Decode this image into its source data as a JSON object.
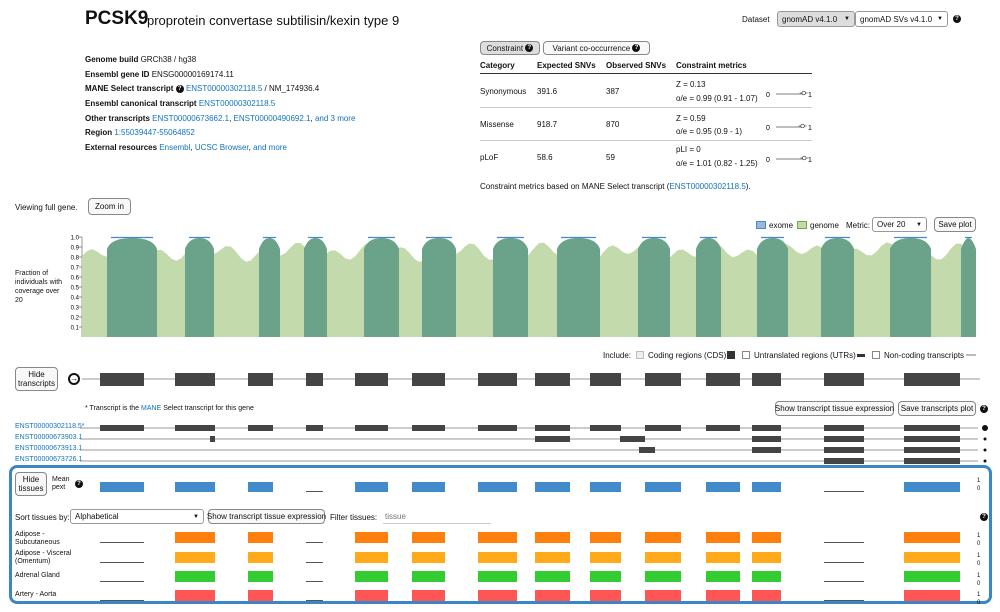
{
  "header": {
    "symbol": "PCSK9",
    "name": "proprotein convertase subtilisin/kexin type 9",
    "dataset_label": "Dataset",
    "dataset_value": "gnomAD v4.1.0",
    "sv_value": "gnomAD SVs v4.1.0",
    "help_glyph": "?"
  },
  "meta": {
    "genome_build_label": "Genome build",
    "genome_build_value": "GRCh38 / hg38",
    "ensembl_id_label": "Ensembl gene ID",
    "ensembl_id_value": "ENSG00000169174.11",
    "mane_label": "MANE Select transcript",
    "mane_link": "ENST00000302118.5",
    "mane_suffix": "/ NM_174936.4",
    "canonical_label": "Ensembl canonical transcript",
    "canonical_link": "ENST00000302118.5",
    "other_label": "Other transcripts",
    "other_link1": "ENST00000673662.1",
    "other_link2": "ENST00000490692.1",
    "other_more": "and 3 more",
    "region_label": "Region",
    "region_link": "1:55039447-55064852",
    "external_label": "External resources",
    "ext_ensembl": "Ensembl",
    "ext_ucsc": "UCSC Browser",
    "ext_more": "and more"
  },
  "constraint": {
    "tab_constraint": "Constraint",
    "tab_cooccurrence": "Variant co-occurrence",
    "headers": [
      "Category",
      "Expected SNVs",
      "Observed SNVs",
      "Constraint metrics"
    ],
    "rows": [
      {
        "category": "Synonymous",
        "expected": "391.6",
        "observed": "387",
        "metric1": "Z = 0.13",
        "metric2": "o/e = 0.99 (0.91 - 1.07)"
      },
      {
        "category": "Missense",
        "expected": "918.7",
        "observed": "870",
        "metric1": "Z = 0.59",
        "metric2": "o/e = 0.95 (0.9 - 1)"
      },
      {
        "category": "pLoF",
        "expected": "58.6",
        "observed": "59",
        "metric1": "pLI = 0",
        "metric2": "o/e = 1.01 (0.82 - 1.25)"
      }
    ],
    "oe_point": [
      0.99,
      0.95,
      1.01
    ],
    "axis_min": "0",
    "axis_max": "1",
    "footnote_prefix": "Constraint metrics based on MANE Select transcript (",
    "footnote_link": "ENST00000302118.5",
    "footnote_suffix": ")."
  },
  "viewer": {
    "viewing_label": "Viewing full gene.",
    "zoom_button": "Zoom in",
    "legend_exome": "exome",
    "legend_genome": "genome",
    "metric_label": "Metric:",
    "metric_value": "Over 20",
    "save_plot": "Save plot",
    "y_axis_title": "Fraction of individuals with coverage over 20",
    "y_ticks": [
      "1.0",
      "0.9",
      "0.8",
      "0.7",
      "0.6",
      "0.5",
      "0.4",
      "0.3",
      "0.2",
      "0.1"
    ],
    "colors": {
      "exome": "#428bca",
      "genome": "#73ab3d",
      "overlap": "#6aa38a"
    }
  },
  "include": {
    "label": "Include:",
    "cds": "Coding regions (CDS)",
    "utr": "Untranslated regions (UTRs)",
    "noncoding": "Non-coding transcripts"
  },
  "transcripts": {
    "hide_button": "Hide transcripts",
    "mane_note_prefix": "* Transcript is the ",
    "mane_note_link": "MANE",
    "mane_note_suffix": " Select transcript for this gene",
    "show_tissue_button": "Show transcript tissue expression",
    "save_button": "Save transcripts plot",
    "ids": [
      "ENST00000302118.5*",
      "ENST00000673903.1",
      "ENST00000673913.1",
      "ENST00000673726.1"
    ]
  },
  "tissues": {
    "hide_button": "Hide tissues",
    "mean_pext": "Mean pext",
    "sort_label": "Sort tissues by:",
    "sort_value": "Alphabetical",
    "show_expression_button": "Show transcript tissue expression",
    "filter_label": "Filter tissues:",
    "filter_placeholder": "tissue",
    "scale_max": "1",
    "scale_min": "0",
    "rows": [
      {
        "name": "Adipose - Subcutaneous",
        "color": "#ff7f0e"
      },
      {
        "name": "Adipose - Visceral (Omentum)",
        "color": "#ffaa1a"
      },
      {
        "name": "Adrenal Gland",
        "color": "#33cc33"
      },
      {
        "name": "Artery - Aorta",
        "color": "#ff5555"
      }
    ],
    "mean_color": "#428bca"
  }
}
